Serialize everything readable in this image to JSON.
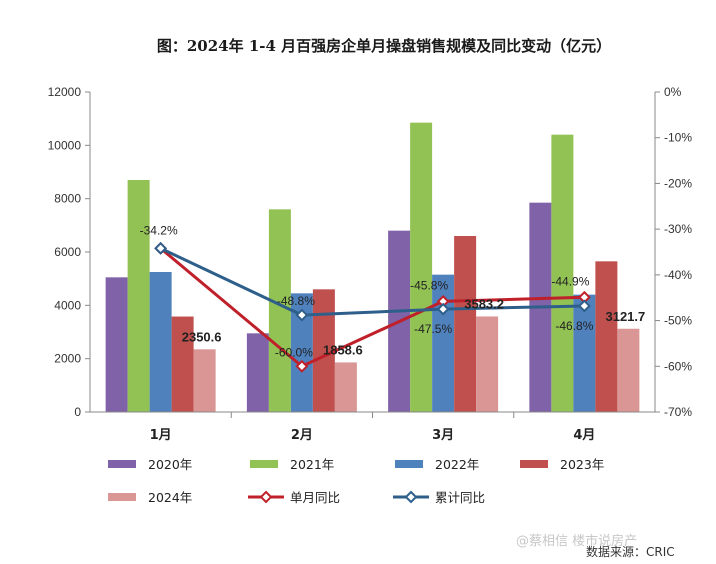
{
  "chart_data": {
    "type": "bar",
    "title": "图：2024年 1-4 月百强房企单月操盘销售规模及同比变动（亿元）",
    "categories": [
      "1月",
      "2月",
      "3月",
      "4月"
    ],
    "ylim": [
      0,
      12000
    ],
    "yticks": [
      "0",
      "2000",
      "4000",
      "6000",
      "8000",
      "10000",
      "12000"
    ],
    "y2lim": [
      -70,
      0
    ],
    "y2ticks": [
      "-70%",
      "-60%",
      "-50%",
      "-40%",
      "-30%",
      "-20%",
      "-10%",
      "0%"
    ],
    "grid": false,
    "legend_position": "bottom",
    "series": [
      {
        "name": "2020年",
        "values": [
          5050,
          2950,
          6800,
          7850
        ],
        "color": "#7f62a8"
      },
      {
        "name": "2021年",
        "values": [
          8700,
          7600,
          10850,
          10400
        ],
        "color": "#92c254"
      },
      {
        "name": "2022年",
        "values": [
          5250,
          4450,
          5150,
          4400
        ],
        "color": "#4f81bd"
      },
      {
        "name": "2023年",
        "values": [
          3580,
          4600,
          6600,
          5650
        ],
        "color": "#c0504d"
      },
      {
        "name": "2024年",
        "values": [
          2350.6,
          1858.6,
          3583.2,
          3121.7
        ],
        "color": "#d99694",
        "labels": [
          "2350.6",
          "1858.6",
          "3583.2",
          "3121.7"
        ]
      }
    ],
    "lines": [
      {
        "name": "单月同比",
        "axis": "right",
        "values": [
          -34.2,
          -60.0,
          -45.8,
          -44.9
        ],
        "labels": [
          "-34.2%",
          "-60.0%",
          "-45.8%",
          "-44.9%"
        ],
        "color": "#c0202a"
      },
      {
        "name": "累计同比",
        "axis": "right",
        "values": [
          -34.2,
          -48.8,
          -47.5,
          -46.8
        ],
        "labels": [
          "",
          "-48.8%",
          "-47.5%",
          "-46.8%"
        ],
        "color": "#2e5f8a"
      }
    ]
  },
  "source": "数据来源：CRIC",
  "watermark": "@蔡相信 楼市说房产"
}
